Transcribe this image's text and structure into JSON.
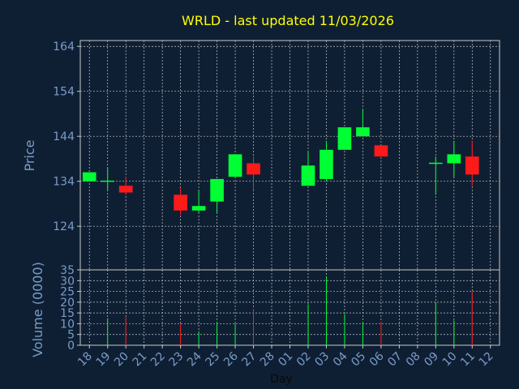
{
  "chart_data": {
    "type": "candlestick",
    "title": "WRLD - last updated 11/03/2026",
    "ylabel_price": "Price",
    "ylabel_volume": "Volume (0000)",
    "xlabel": "Day",
    "price_ticks": [
      124,
      134,
      144,
      154,
      164
    ],
    "price_range": [
      114.3,
      165.3
    ],
    "volume_ticks": [
      0,
      5,
      10,
      15,
      20,
      25,
      30,
      35
    ],
    "volume_range": [
      0,
      35
    ],
    "x_labels": [
      "18",
      "19",
      "20",
      "21",
      "22",
      "23",
      "24",
      "25",
      "26",
      "27",
      "28",
      "01",
      "02",
      "03",
      "04",
      "05",
      "06",
      "07",
      "08",
      "09",
      "10",
      "11",
      "12"
    ],
    "colors": {
      "up": "#00ff33",
      "down": "#ff1a1a",
      "title": "#ffff00",
      "text": "#7a9cc8",
      "plot_bg": "#0f1f33"
    },
    "candles": [
      {
        "x": "18",
        "open": 134.0,
        "high": 136.0,
        "low": 134.0,
        "close": 136.0,
        "volume": 0
      },
      {
        "x": "19",
        "open": 134.0,
        "high": 137.0,
        "low": 132.0,
        "close": 134.0,
        "volume": 12.5
      },
      {
        "x": "20",
        "open": 133.0,
        "high": 135.0,
        "low": 131.0,
        "close": 131.5,
        "volume": 13
      },
      {
        "x": "23",
        "open": 131.0,
        "high": 132.5,
        "low": 126.5,
        "close": 127.5,
        "volume": 10
      },
      {
        "x": "24",
        "open": 127.5,
        "high": 132.0,
        "low": 127.0,
        "close": 128.5,
        "volume": 6.5
      },
      {
        "x": "25",
        "open": 129.5,
        "high": 134.5,
        "low": 127.0,
        "close": 134.5,
        "volume": 10.5
      },
      {
        "x": "26",
        "open": 135.0,
        "high": 140.0,
        "low": 135.0,
        "close": 140.0,
        "volume": 10
      },
      {
        "x": "27",
        "open": 138.0,
        "high": 139.5,
        "low": 132.0,
        "close": 135.5,
        "volume": 17
      },
      {
        "x": "02",
        "open": 133.0,
        "high": 140.5,
        "low": 133.0,
        "close": 137.5,
        "volume": 19
      },
      {
        "x": "03",
        "open": 134.5,
        "high": 143.0,
        "low": 134.0,
        "close": 141.0,
        "volume": 32
      },
      {
        "x": "04",
        "open": 141.0,
        "high": 146.0,
        "low": 141.0,
        "close": 146.0,
        "volume": 14.5
      },
      {
        "x": "05",
        "open": 144.0,
        "high": 150.0,
        "low": 144.0,
        "close": 146.0,
        "volume": 10.5
      },
      {
        "x": "06",
        "open": 142.0,
        "high": 142.0,
        "low": 139.5,
        "close": 139.5,
        "volume": 11
      },
      {
        "x": "09",
        "open": 138.0,
        "high": 139.5,
        "low": 131.0,
        "close": 138.0,
        "volume": 20
      },
      {
        "x": "10",
        "open": 138.0,
        "high": 143.0,
        "low": 135.0,
        "close": 140.0,
        "volume": 11.5
      },
      {
        "x": "11",
        "open": 139.5,
        "high": 143.0,
        "low": 133.0,
        "close": 135.5,
        "volume": 25
      }
    ]
  }
}
